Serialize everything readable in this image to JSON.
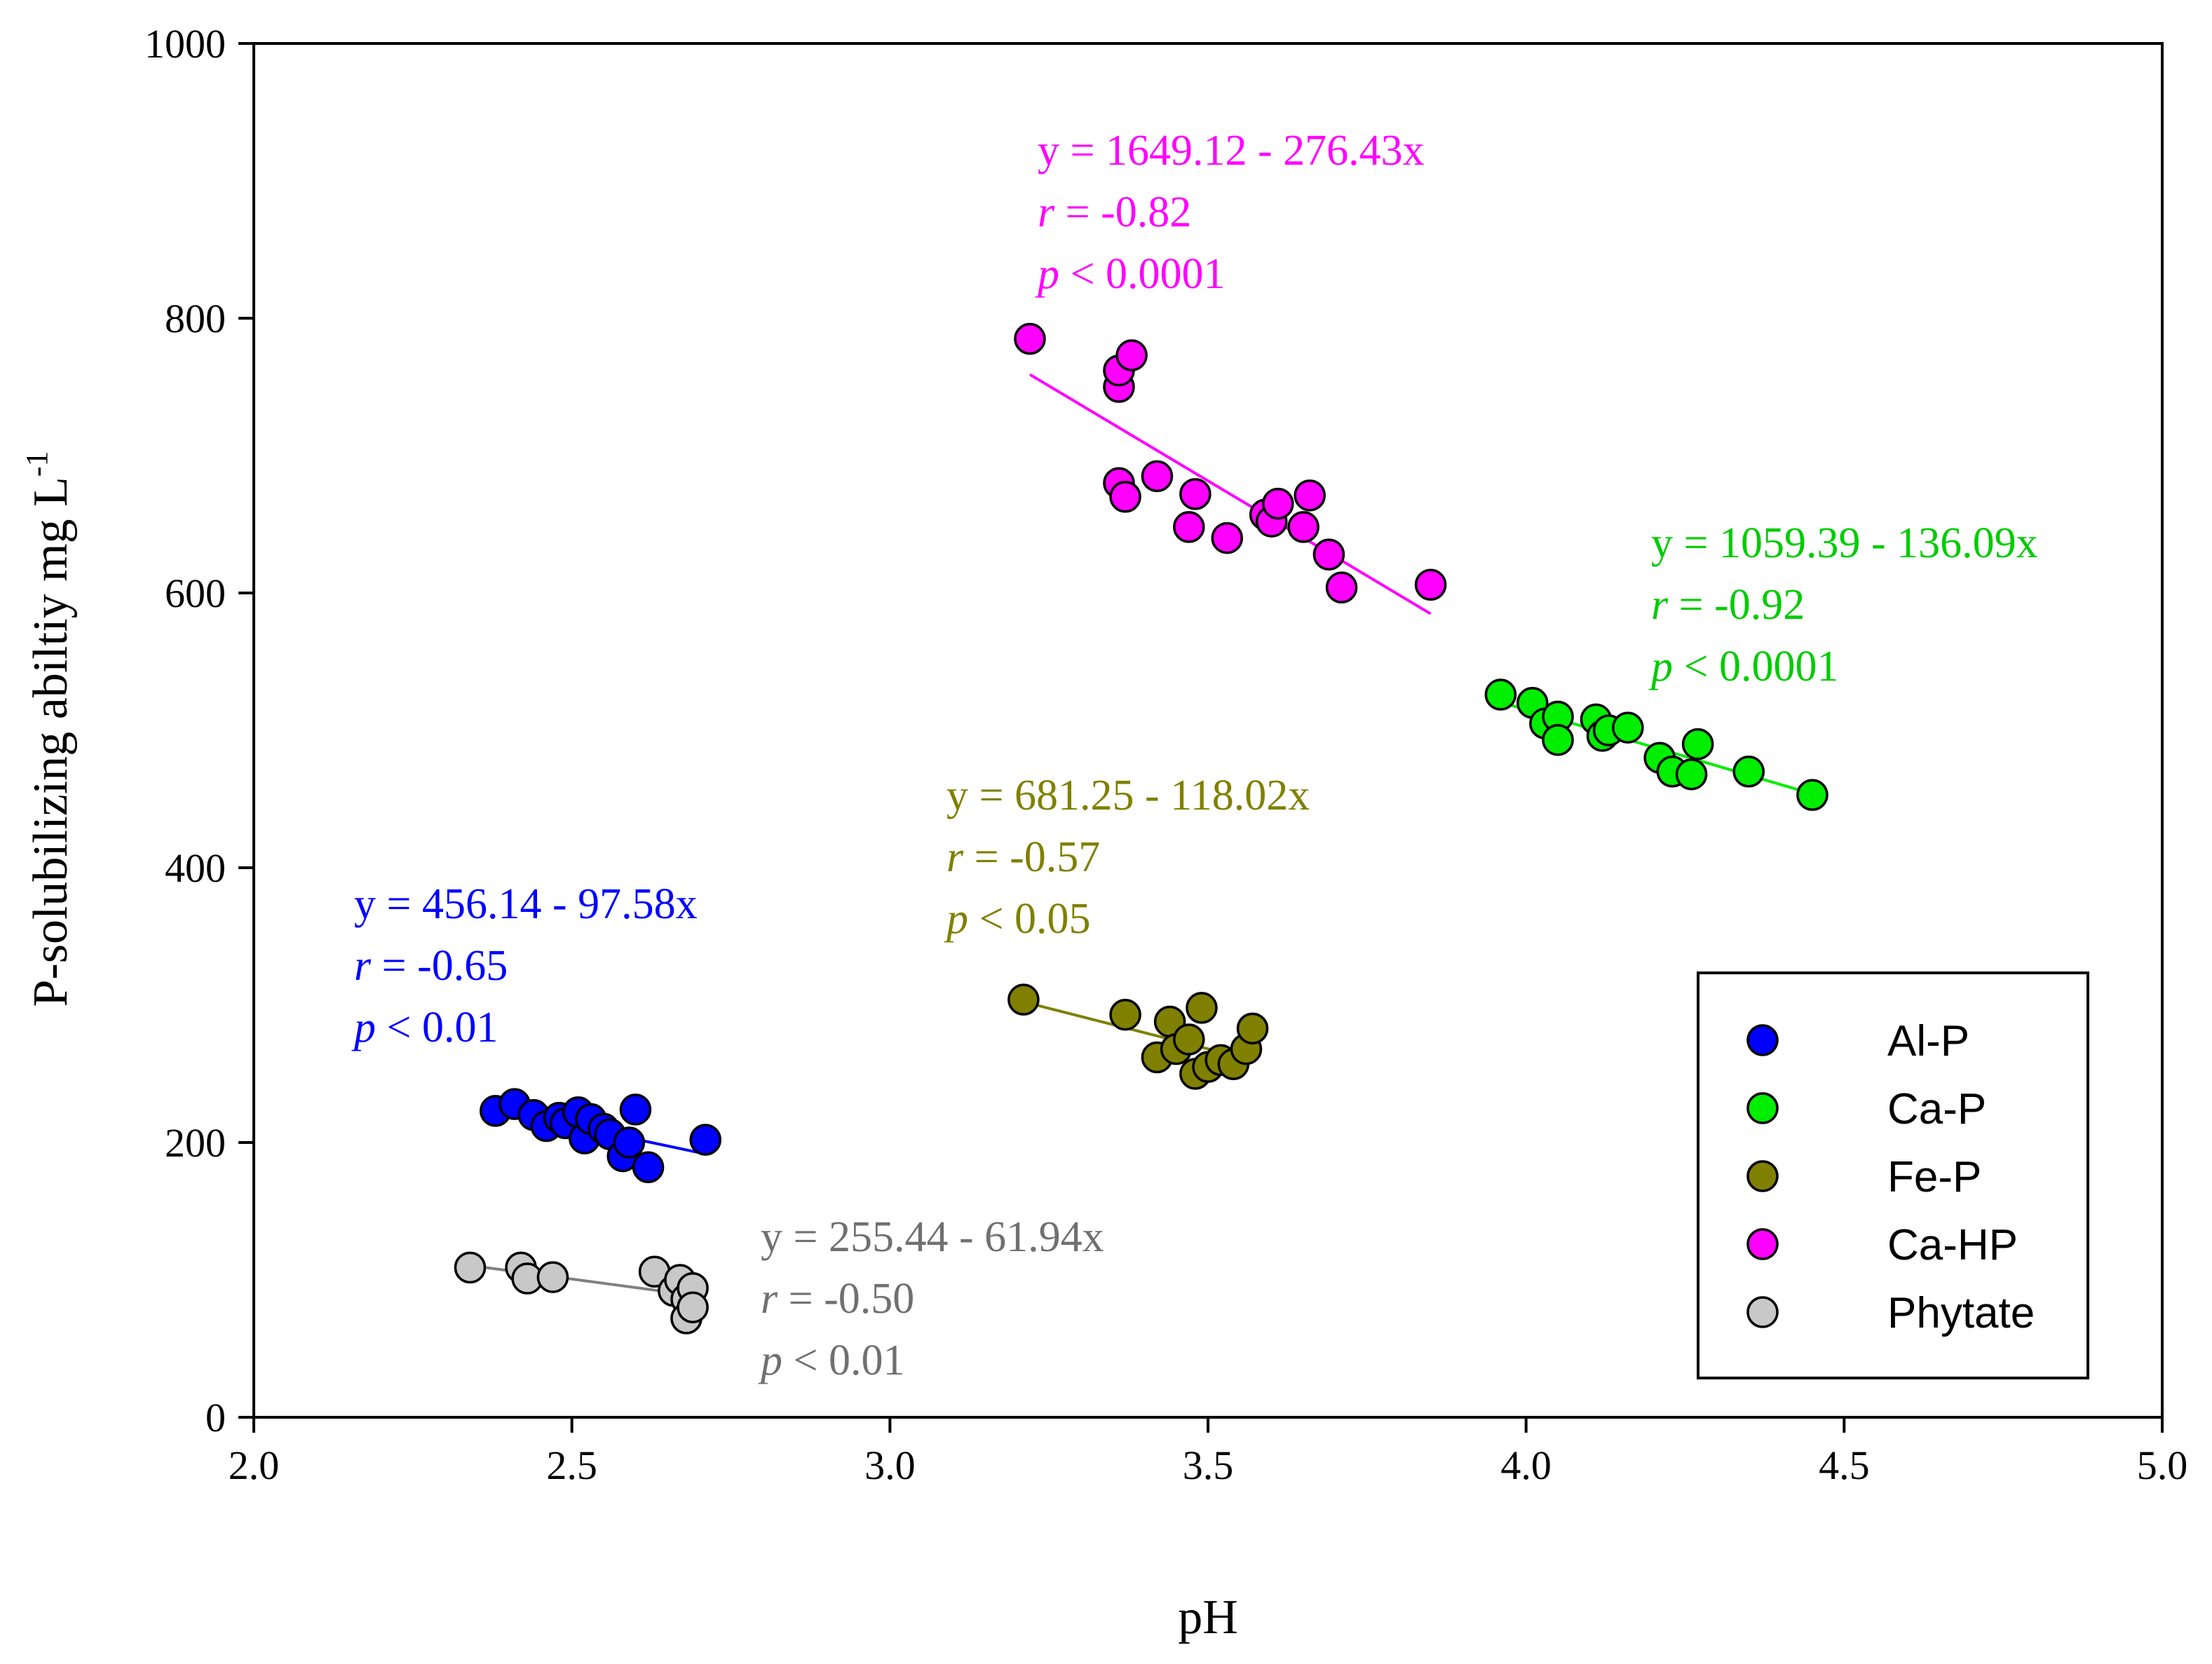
{
  "chart_data": {
    "type": "scatter",
    "xlabel": "pH",
    "ylabel": "P-solubilizing abiltiy mg L",
    "ylabel_superscript": "-1",
    "xlim": [
      2.0,
      5.0
    ],
    "ylim": [
      0,
      1000
    ],
    "xticks": [
      "2.0",
      "2.5",
      "3.0",
      "3.5",
      "4.0",
      "4.5",
      "5.0"
    ],
    "yticks": [
      "0",
      "200",
      "400",
      "600",
      "800",
      "1000"
    ],
    "legend_position": "lower-right",
    "series": [
      {
        "name": "Al-P",
        "color": "#0000ff",
        "points": [
          [
            2.38,
            223
          ],
          [
            2.41,
            228
          ],
          [
            2.44,
            220
          ],
          [
            2.46,
            212
          ],
          [
            2.48,
            218
          ],
          [
            2.49,
            214
          ],
          [
            2.51,
            222
          ],
          [
            2.52,
            203
          ],
          [
            2.53,
            217
          ],
          [
            2.55,
            210
          ],
          [
            2.56,
            206
          ],
          [
            2.58,
            190
          ],
          [
            2.59,
            200
          ],
          [
            2.6,
            224
          ],
          [
            2.62,
            182
          ],
          [
            2.71,
            202
          ]
        ],
        "fit_x": [
          2.38,
          2.71
        ],
        "equation": "y = 456.14 - 97.58x",
        "r_label": "r",
        "r_value": " = -0.65",
        "p_label": "p",
        "p_value": " < 0.01"
      },
      {
        "name": "Ca-P",
        "color": "#00ee00",
        "points": [
          [
            3.96,
            526
          ],
          [
            4.01,
            520
          ],
          [
            4.03,
            505
          ],
          [
            4.05,
            510
          ],
          [
            4.05,
            493
          ],
          [
            4.11,
            508
          ],
          [
            4.12,
            496
          ],
          [
            4.13,
            500
          ],
          [
            4.16,
            502
          ],
          [
            4.21,
            480
          ],
          [
            4.23,
            470
          ],
          [
            4.26,
            468
          ],
          [
            4.27,
            490
          ],
          [
            4.35,
            470
          ],
          [
            4.45,
            453
          ]
        ],
        "fit_x": [
          3.96,
          4.45
        ],
        "equation": "y = 1059.39 - 136.09x",
        "r_label": "r",
        "r_value": " = -0.92",
        "p_label": "p",
        "p_value": " < 0.0001"
      },
      {
        "name": "Fe-P",
        "color": "#808000",
        "points": [
          [
            3.21,
            304
          ],
          [
            3.37,
            293
          ],
          [
            3.42,
            262
          ],
          [
            3.44,
            288
          ],
          [
            3.45,
            268
          ],
          [
            3.47,
            275
          ],
          [
            3.48,
            250
          ],
          [
            3.49,
            298
          ],
          [
            3.5,
            255
          ],
          [
            3.52,
            260
          ],
          [
            3.54,
            257
          ],
          [
            3.56,
            268
          ],
          [
            3.57,
            283
          ]
        ],
        "fit_x": [
          3.21,
          3.57
        ],
        "equation": "y = 681.25 - 118.02x",
        "r_label": "r",
        "r_value": " = -0.57",
        "p_label": "p",
        "p_value": " < 0.05"
      },
      {
        "name": "Ca-HP",
        "color": "#ff00ff",
        "points": [
          [
            3.22,
            785
          ],
          [
            3.36,
            750
          ],
          [
            3.36,
            762
          ],
          [
            3.38,
            773
          ],
          [
            3.36,
            680
          ],
          [
            3.37,
            670
          ],
          [
            3.42,
            685
          ],
          [
            3.47,
            648
          ],
          [
            3.48,
            672
          ],
          [
            3.53,
            640
          ],
          [
            3.59,
            657
          ],
          [
            3.6,
            652
          ],
          [
            3.61,
            665
          ],
          [
            3.65,
            648
          ],
          [
            3.66,
            671
          ],
          [
            3.69,
            628
          ],
          [
            3.71,
            604
          ],
          [
            3.85,
            606
          ]
        ],
        "fit_x": [
          3.22,
          3.85
        ],
        "equation": "y = 1649.12 - 276.43x",
        "r_label": "r",
        "r_value": " = -0.82",
        "p_label": "p",
        "p_value": " < 0.0001"
      },
      {
        "name": "Phytate",
        "color": "#c8c8c8",
        "points": [
          [
            2.34,
            109
          ],
          [
            2.42,
            109
          ],
          [
            2.43,
            101
          ],
          [
            2.47,
            102
          ],
          [
            2.63,
            106
          ],
          [
            2.66,
            92
          ],
          [
            2.67,
            100
          ],
          [
            2.68,
            86
          ],
          [
            2.69,
            94
          ],
          [
            2.68,
            72
          ],
          [
            2.69,
            80
          ]
        ],
        "fit_x": [
          2.34,
          2.69
        ],
        "equation": "y = 255.44 - 61.94x",
        "r_label": "r",
        "r_value": " = -0.50",
        "p_label": "p",
        "p_value": " < 0.01"
      }
    ]
  }
}
